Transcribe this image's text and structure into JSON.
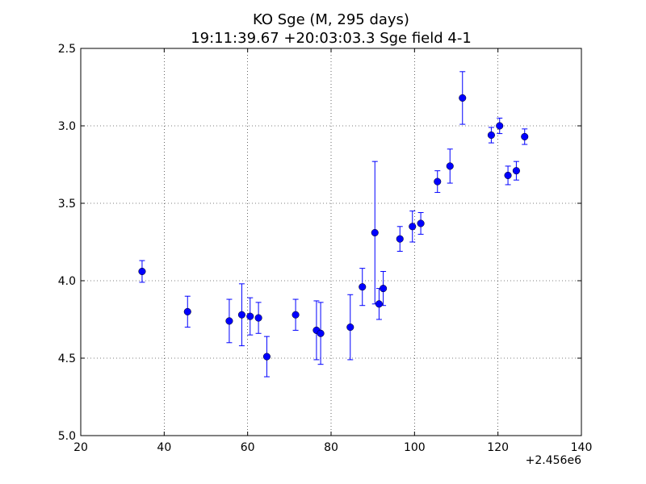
{
  "chart_data": {
    "type": "scatter",
    "title": "KO Sge (M, 295 days)",
    "subtitle": "19:11:39.67 +20:03:03.3 Sge field 4-1",
    "xlabel": "",
    "ylabel": "",
    "xlim": [
      20,
      140
    ],
    "ylim": [
      2.5,
      5.0
    ],
    "y_inverted": true,
    "x_offset_label": "+2.456e6",
    "x_ticks": [
      20,
      40,
      60,
      80,
      100,
      120,
      140
    ],
    "x_tick_labels": [
      "20",
      "40",
      "60",
      "80",
      "100",
      "120",
      "140"
    ],
    "y_ticks": [
      2.5,
      3.0,
      3.5,
      4.0,
      4.5,
      5.0
    ],
    "y_tick_labels": [
      "2.5",
      "3.0",
      "3.5",
      "4.0",
      "4.5",
      "5.0"
    ],
    "grid": true,
    "marker_color": "#0000ff",
    "points": [
      {
        "x": 34.7,
        "y": 3.94,
        "err": 0.07
      },
      {
        "x": 45.6,
        "y": 4.2,
        "err": 0.1
      },
      {
        "x": 55.6,
        "y": 4.26,
        "err": 0.14
      },
      {
        "x": 58.6,
        "y": 4.22,
        "err": 0.2
      },
      {
        "x": 60.6,
        "y": 4.23,
        "err": 0.12
      },
      {
        "x": 62.6,
        "y": 4.24,
        "err": 0.1
      },
      {
        "x": 64.6,
        "y": 4.49,
        "err": 0.13
      },
      {
        "x": 71.5,
        "y": 4.22,
        "err": 0.1
      },
      {
        "x": 76.5,
        "y": 4.32,
        "err": 0.19
      },
      {
        "x": 77.5,
        "y": 4.34,
        "err": 0.2
      },
      {
        "x": 84.6,
        "y": 4.3,
        "err": 0.21
      },
      {
        "x": 87.5,
        "y": 4.04,
        "err": 0.12
      },
      {
        "x": 90.5,
        "y": 3.69,
        "err": 0.46
      },
      {
        "x": 91.5,
        "y": 4.15,
        "err": 0.1
      },
      {
        "x": 92.5,
        "y": 4.05,
        "err": 0.11
      },
      {
        "x": 96.5,
        "y": 3.73,
        "err": 0.08
      },
      {
        "x": 99.5,
        "y": 3.65,
        "err": 0.1
      },
      {
        "x": 101.5,
        "y": 3.63,
        "err": 0.07
      },
      {
        "x": 105.5,
        "y": 3.36,
        "err": 0.07
      },
      {
        "x": 108.5,
        "y": 3.26,
        "err": 0.11
      },
      {
        "x": 111.5,
        "y": 2.82,
        "err": 0.17
      },
      {
        "x": 118.4,
        "y": 3.06,
        "err": 0.05
      },
      {
        "x": 120.4,
        "y": 3.0,
        "err": 0.05
      },
      {
        "x": 122.4,
        "y": 3.32,
        "err": 0.06
      },
      {
        "x": 124.4,
        "y": 3.29,
        "err": 0.06
      },
      {
        "x": 126.4,
        "y": 3.07,
        "err": 0.05
      }
    ]
  }
}
